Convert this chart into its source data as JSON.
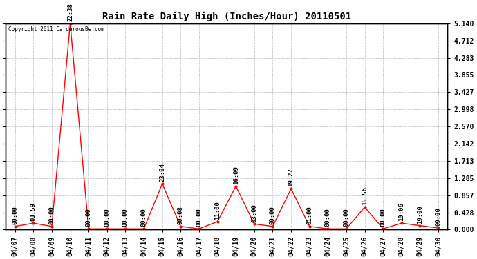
{
  "title": "Rain Rate Daily High (Inches/Hour) 20110501",
  "copyright": "Copyright 2011 CarderousBe.com",
  "line_color": "#ff0000",
  "bg_color": "#ffffff",
  "grid_color": "#bbbbbb",
  "text_color": "#000000",
  "yticks": [
    0.0,
    0.428,
    0.857,
    1.285,
    1.713,
    2.142,
    2.57,
    2.998,
    3.427,
    3.855,
    4.283,
    4.712,
    5.14
  ],
  "x_labels": [
    "04/07",
    "04/08",
    "04/09",
    "04/10",
    "04/11",
    "04/12",
    "04/13",
    "04/14",
    "04/15",
    "04/16",
    "04/17",
    "04/18",
    "04/19",
    "04/20",
    "04/21",
    "04/22",
    "04/23",
    "04/24",
    "04/25",
    "04/26",
    "04/27",
    "04/28",
    "04/29",
    "04/30"
  ],
  "x_indices": [
    0,
    1,
    2,
    3,
    4,
    5,
    6,
    7,
    8,
    9,
    10,
    11,
    12,
    13,
    14,
    15,
    16,
    17,
    18,
    19,
    20,
    21,
    22,
    23
  ],
  "data_points": [
    [
      0,
      0.08,
      "00:00"
    ],
    [
      1,
      0.16,
      "03:59"
    ],
    [
      2,
      0.08,
      "00:00"
    ],
    [
      3,
      5.14,
      "22:38"
    ],
    [
      4,
      0.02,
      "00:00"
    ],
    [
      5,
      0.02,
      "00:00"
    ],
    [
      6,
      0.02,
      "00:00"
    ],
    [
      7,
      0.02,
      "00:00"
    ],
    [
      8,
      1.14,
      "23:04"
    ],
    [
      9,
      0.08,
      "00:08"
    ],
    [
      10,
      0.02,
      "00:00"
    ],
    [
      11,
      0.2,
      "11:00"
    ],
    [
      12,
      1.08,
      "16:09"
    ],
    [
      13,
      0.14,
      "03:00"
    ],
    [
      14,
      0.08,
      "00:00"
    ],
    [
      15,
      1.02,
      "19:27"
    ],
    [
      16,
      0.08,
      "01:00"
    ],
    [
      17,
      0.02,
      "00:00"
    ],
    [
      18,
      0.02,
      "00:00"
    ],
    [
      19,
      0.56,
      "15:56"
    ],
    [
      20,
      0.02,
      "00:00"
    ],
    [
      21,
      0.16,
      "10:06"
    ],
    [
      22,
      0.1,
      "19:00"
    ],
    [
      23,
      0.04,
      "09:00"
    ]
  ],
  "ylim": [
    0,
    5.14
  ],
  "xlim": [
    -0.5,
    23.5
  ],
  "title_fontsize": 10,
  "tick_fontsize": 7,
  "annotation_fontsize": 6.5
}
